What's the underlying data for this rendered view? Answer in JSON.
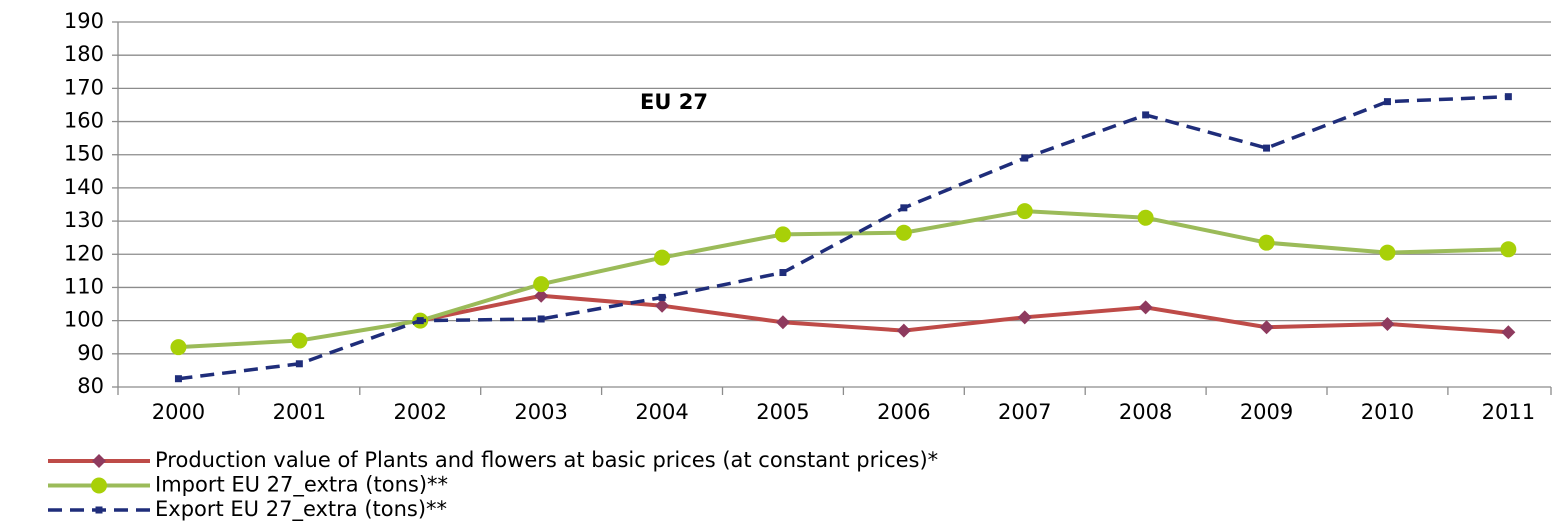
{
  "chart_data": {
    "type": "line",
    "annotation": "EU 27",
    "categories": [
      "2000",
      "2001",
      "2002",
      "2003",
      "2004",
      "2005",
      "2006",
      "2007",
      "2008",
      "2009",
      "2010",
      "2011"
    ],
    "series": [
      {
        "name": "Production value of Plants and flowers at basic prices (at constant prices)*",
        "color": "#be4b48",
        "marker": "diamond",
        "marker_color": "#8e3a5e",
        "dash": "solid",
        "values": [
          null,
          null,
          100,
          107.5,
          104.5,
          99.5,
          97,
          101,
          104,
          98,
          99,
          96.5
        ]
      },
      {
        "name": "Import EU 27_extra (tons)**",
        "color": "#9bbb59",
        "marker": "circle",
        "marker_color": "#a8d008",
        "dash": "solid",
        "values": [
          92,
          94,
          100,
          111,
          119,
          126,
          126.5,
          133,
          131,
          123.5,
          120.5,
          121.5
        ]
      },
      {
        "name": "Export EU 27_extra (tons)**",
        "color": "#1f2d7a",
        "marker": "square",
        "marker_color": "#1f2d7a",
        "dash": "dashed",
        "values": [
          82.5,
          87,
          100,
          100.5,
          107,
          114.5,
          134,
          149,
          162,
          152,
          166,
          167.5
        ]
      }
    ],
    "ylim": [
      80,
      190
    ],
    "yticks": [
      80,
      90,
      100,
      110,
      120,
      130,
      140,
      150,
      160,
      170,
      180,
      190
    ],
    "grid": true,
    "legend": "bottom"
  }
}
